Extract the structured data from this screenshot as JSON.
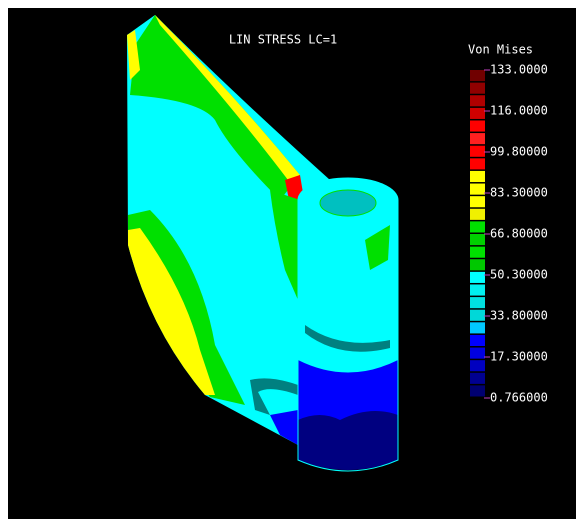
{
  "title": "LIN STRESS LC=1",
  "legend": {
    "title": "Von Mises",
    "labels": [
      "133.0000",
      "116.0000",
      "99.80000",
      "83.30000",
      "66.80000",
      "50.30000",
      "33.80000",
      "17.30000",
      "0.766000"
    ],
    "colors": [
      "#700000",
      "#900000",
      "#b00000",
      "#d00000",
      "#ff0000",
      "#ff2020",
      "#ff0000",
      "#ff0000",
      "#ffff00",
      "#ffff00",
      "#ffff00",
      "#f0f000",
      "#00e000",
      "#00d000",
      "#00e000",
      "#00c800",
      "#00ffff",
      "#00f0f0",
      "#00e0e0",
      "#00d8d8",
      "#00c8ff",
      "#0000ff",
      "#0000e0",
      "#0000c0",
      "#000090",
      "#000070"
    ]
  }
}
